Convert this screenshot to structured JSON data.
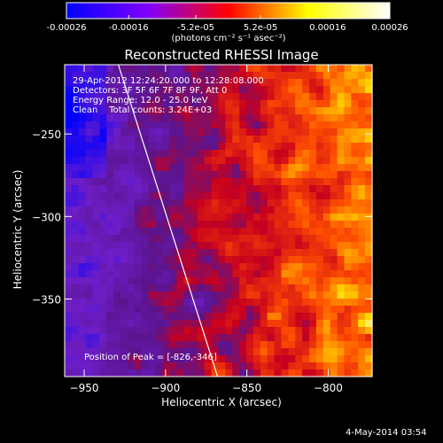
{
  "colorbar": {
    "tick_labels": [
      "-0.00026",
      "-0.00016",
      "-5.2e-05",
      "5.2e-05",
      "0.00016",
      "0.00026"
    ],
    "unit_label": "(photons cm⁻² s⁻¹ asec⁻²)",
    "range": [
      -0.00026,
      0.00026
    ]
  },
  "chart_data": {
    "type": "heatmap",
    "title": "Reconstructed RHESSI Image",
    "xlabel": "Heliocentric X (arcsec)",
    "ylabel": "Heliocentric Y (arcsec)",
    "xlim": [
      -962,
      -773
    ],
    "ylim": [
      -397,
      -208
    ],
    "x_ticks": [
      -950,
      -900,
      -850,
      -800
    ],
    "y_ticks": [
      -250,
      -300,
      -350
    ],
    "annotations": [
      "29-Apr-2012 12:24:20.000 to 12:28:08.000",
      "Detectors: 3F 5F 6F 7F 8F 9F, Att 0",
      "Energy Range: 12.0 - 25.0 keV",
      "Clean    Total counts: 3.24E+03"
    ],
    "peak_label": "Position of Peak = [-826,-346]",
    "peak": [
      -826,
      -346
    ],
    "limb_line": [
      [
        -929,
        -208
      ],
      [
        -868,
        -397
      ]
    ],
    "colormap": [
      "#0000ff",
      "#7f00ff",
      "#ff0000",
      "#ffff00",
      "#ffffff"
    ]
  },
  "footer": {
    "date": "4-May-2014 03:54"
  }
}
